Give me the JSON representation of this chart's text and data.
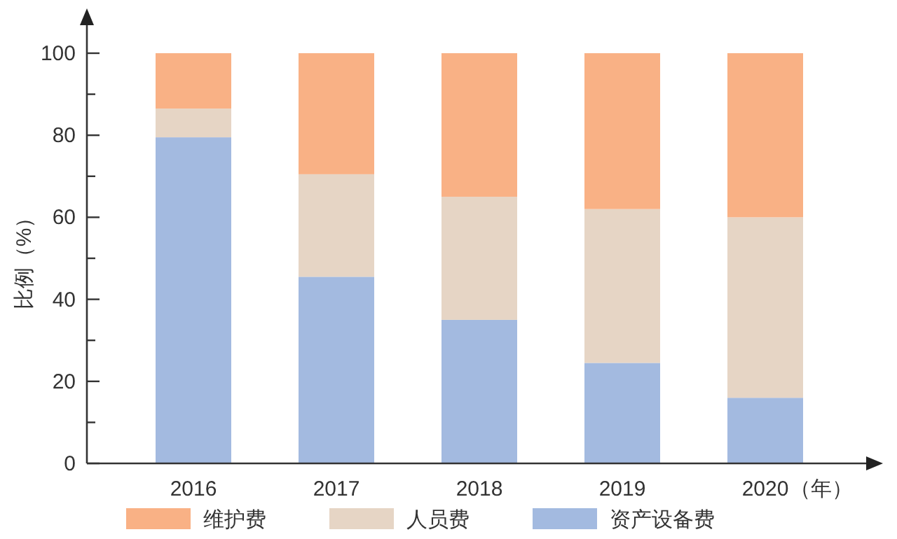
{
  "chart_data": {
    "type": "bar",
    "stacked": true,
    "ylabel": "比例（%）",
    "xlabel": "（年）",
    "categories": [
      "2016",
      "2017",
      "2018",
      "2019",
      "2020"
    ],
    "series": [
      {
        "name": "资产设备费",
        "color": "#a3bae0",
        "values": [
          79.5,
          45.5,
          35,
          24.5,
          16
        ]
      },
      {
        "name": "人员费",
        "color": "#e6d5c5",
        "values": [
          7,
          25,
          30,
          37.5,
          44
        ]
      },
      {
        "name": "维护费",
        "color": "#f9b185",
        "values": [
          13.5,
          29.5,
          35,
          38,
          40
        ]
      }
    ],
    "ylim": [
      0,
      100
    ],
    "yticks": [
      0,
      {
        "value": 10,
        "label": null
      },
      20,
      {
        "value": 30,
        "label": null
      },
      40,
      {
        "value": 50,
        "label": null
      },
      60,
      {
        "value": 70,
        "label": null
      },
      80,
      {
        "value": 90,
        "label": null
      },
      100
    ],
    "grid": false,
    "legend": "bottom"
  }
}
